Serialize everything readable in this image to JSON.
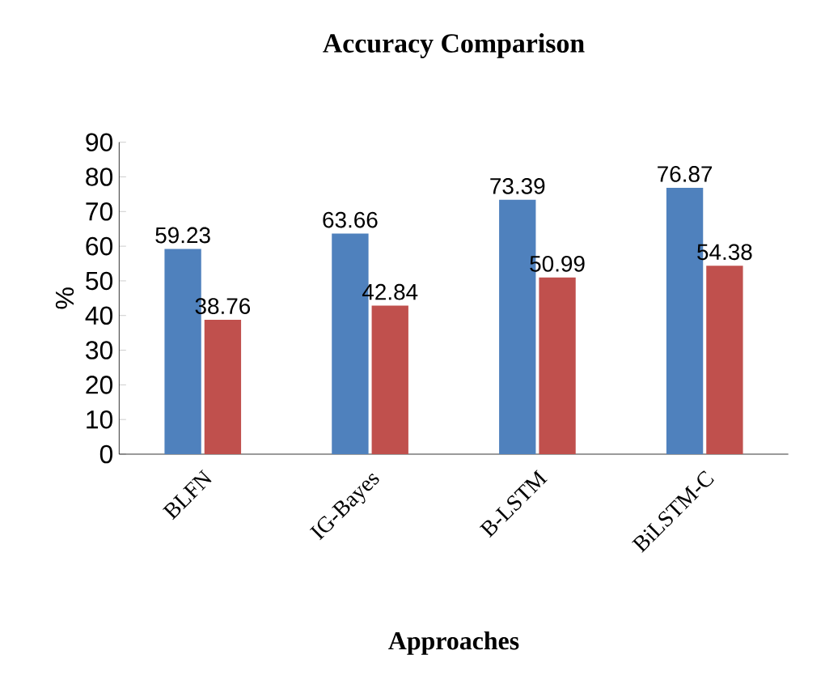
{
  "chart_data": {
    "type": "bar",
    "title": "Accuracy Comparison",
    "xlabel": "Approaches",
    "ylabel": "%",
    "categories": [
      "BLFN",
      "IG-Bayes",
      "B-LSTM",
      "BiLSTM-C"
    ],
    "series": [
      {
        "color": "#4f81bd",
        "values": [
          59.23,
          63.66,
          73.39,
          76.87
        ]
      },
      {
        "color": "#c0504d",
        "values": [
          38.76,
          42.84,
          50.99,
          54.38
        ]
      }
    ],
    "ylim": [
      0,
      90
    ],
    "yticks": [
      0,
      10,
      20,
      30,
      40,
      50,
      60,
      70,
      80,
      90
    ],
    "data_labels": true,
    "grid": false
  }
}
